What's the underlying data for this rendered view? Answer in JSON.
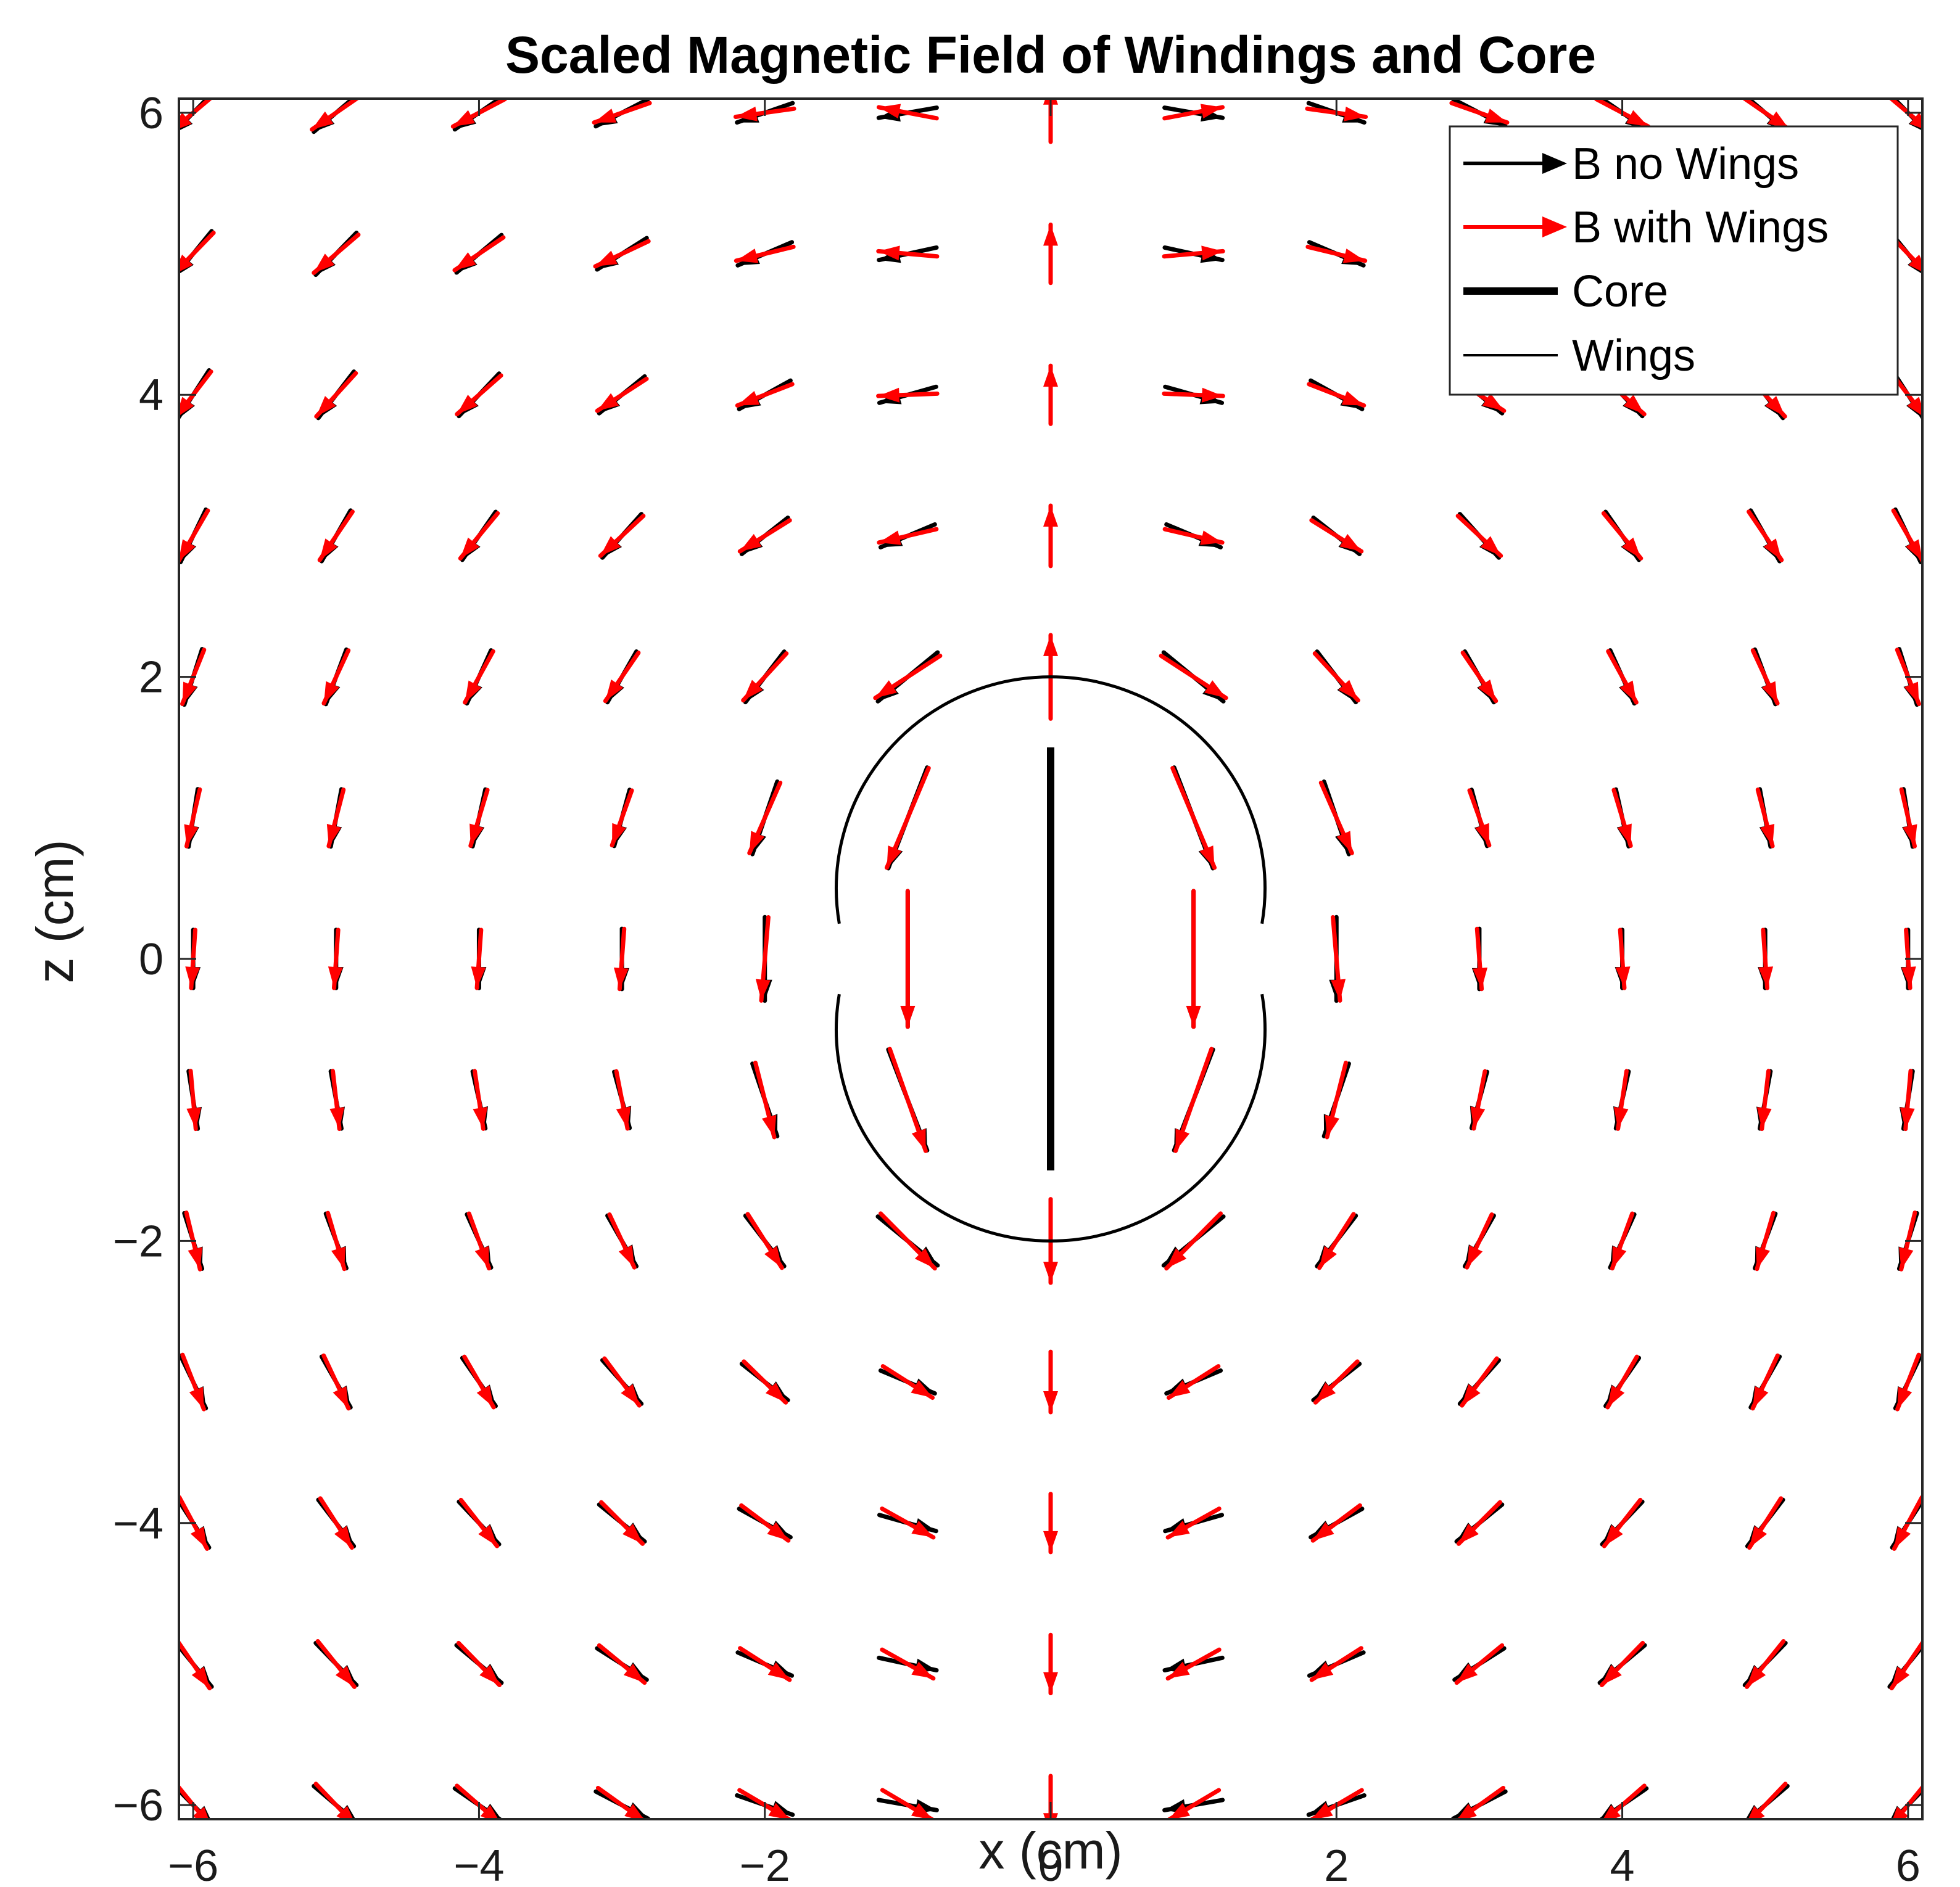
{
  "chart_data": {
    "type": "quiver",
    "title": "Scaled Magnetic Field of Windings and Core",
    "xlabel": "x (cm)",
    "ylabel": "z (cm)",
    "xlim": [
      -6.1,
      6.1
    ],
    "ylim": [
      -6.1,
      6.1
    ],
    "xticks": [
      -6,
      -4,
      -2,
      0,
      2,
      4,
      6
    ],
    "yticks": [
      -6,
      -4,
      -2,
      0,
      2,
      4,
      6
    ],
    "xtick_labels": [
      "−6",
      "−4",
      "−2",
      "0",
      "2",
      "4",
      "6"
    ],
    "ytick_labels": [
      "−6",
      "−4",
      "−2",
      "0",
      "2",
      "4",
      "6"
    ],
    "grid": [
      -6,
      -5,
      -4,
      -3,
      -2,
      -1,
      0,
      1,
      2,
      3,
      4,
      5,
      6
    ],
    "vector_scale_cm": 0.55,
    "series": [
      {
        "name": "B no Wings",
        "color": "#000000",
        "kind": "quiver",
        "wings_strength": 0.0
      },
      {
        "name": "B with Wings",
        "color": "#ff0000",
        "kind": "quiver",
        "wings_strength": 0.2
      }
    ],
    "core": {
      "name": "Core",
      "color": "#000000",
      "x": 0,
      "z": [
        -1.5,
        1.5
      ]
    },
    "wings": {
      "name": "Wings",
      "color": "#000000",
      "radius_cm": 1.5,
      "gap_z": 0.25
    },
    "legend": {
      "location": "top-right",
      "entries": [
        "B no Wings",
        "B with Wings",
        "Core",
        "Wings"
      ]
    }
  }
}
